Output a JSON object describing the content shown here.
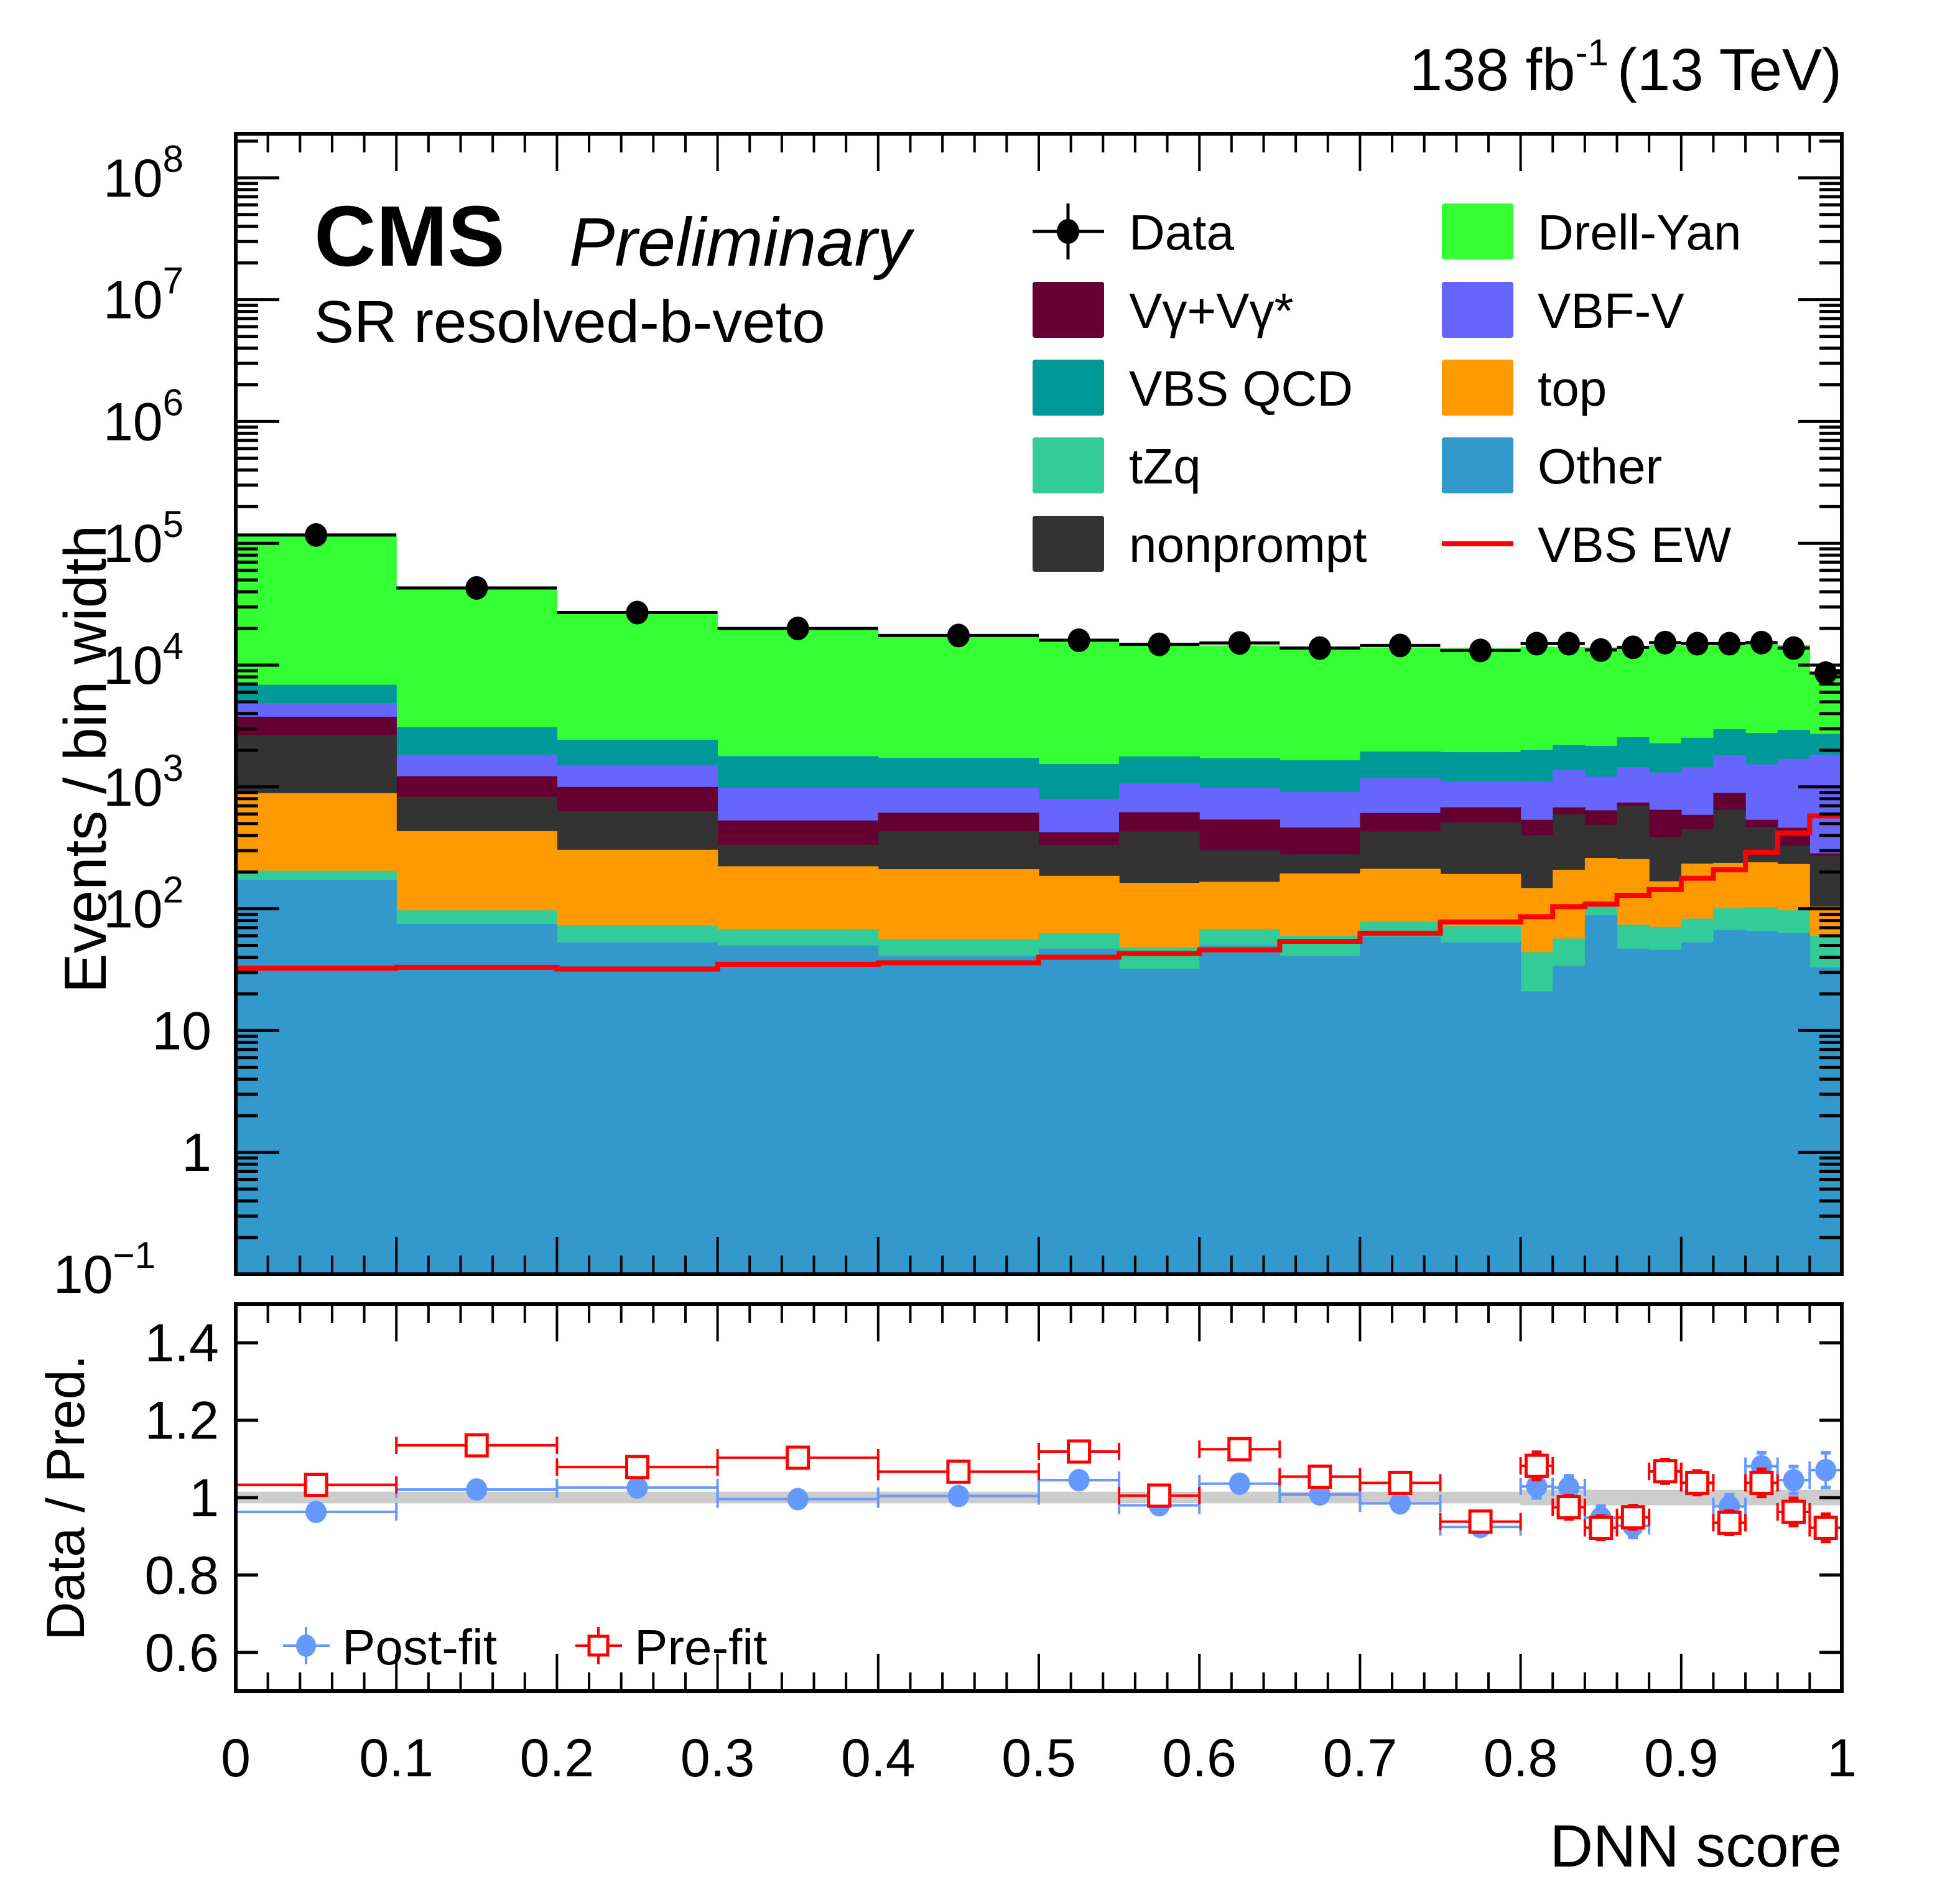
{
  "header": {
    "lumi_value": "138 fb",
    "lumi_exp": "-1",
    "energy": "(13 TeV)",
    "experiment": "CMS",
    "status": "Preliminary",
    "region": "SR resolved-b-veto"
  },
  "chart_data": [
    {
      "type": "bar",
      "stacked": true,
      "log_y": true,
      "title": "",
      "xlabel": "DNN score",
      "ylabel": "Events / bin width",
      "xlim": [
        0,
        1
      ],
      "ylim": [
        0.1,
        230000000
      ],
      "x_ticks": [
        "0",
        "0.1",
        "0.2",
        "0.3",
        "0.4",
        "0.5",
        "0.6",
        "0.7",
        "0.8",
        "0.9",
        "1"
      ],
      "y_ticks": [
        {
          "value": 0.1,
          "base": "10",
          "exp": "−1"
        },
        {
          "value": 1,
          "base": "1",
          "exp": ""
        },
        {
          "value": 10,
          "base": "10",
          "exp": ""
        },
        {
          "value": 100,
          "base": "10",
          "exp": "2"
        },
        {
          "value": 1000,
          "base": "10",
          "exp": "3"
        },
        {
          "value": 10000,
          "base": "10",
          "exp": "4"
        },
        {
          "value": 100000,
          "base": "10",
          "exp": "5"
        },
        {
          "value": 1000000,
          "base": "10",
          "exp": "6"
        },
        {
          "value": 10000000,
          "base": "10",
          "exp": "7"
        },
        {
          "value": 100000000,
          "base": "10",
          "exp": "8"
        }
      ],
      "bin_edges": [
        0,
        0.1,
        0.2,
        0.3,
        0.4,
        0.5,
        0.55,
        0.6,
        0.65,
        0.7,
        0.75,
        0.8,
        0.82,
        0.84,
        0.86,
        0.88,
        0.9,
        0.92,
        0.94,
        0.96,
        0.98,
        1.0
      ],
      "legend_position": "top-right",
      "stack_order_bottom_to_top": [
        "Other",
        "tZq",
        "top",
        "nonprompt",
        "Vγ+Vγ*",
        "VBF-V",
        "VBS QCD",
        "Drell-Yan"
      ],
      "cumulative_stack_tops": {
        "Other": [
          173,
          75,
          53,
          50,
          41,
          47,
          32,
          50,
          41,
          59,
          53,
          21,
          34,
          89,
          47,
          46,
          53,
          67,
          66,
          63,
          33
        ],
        "tZq": [
          205,
          97,
          73,
          68,
          56,
          63,
          48,
          68,
          60,
          78,
          72,
          44,
          57,
          116,
          74,
          71,
          83,
          101,
          103,
          97,
          60
        ],
        "top": [
          890,
          434,
          305,
          223,
          211,
          186,
          163,
          167,
          195,
          213,
          193,
          148,
          209,
          261,
          256,
          168,
          235,
          238,
          241,
          233,
          104
        ],
        "nonprompt": [
          2670,
          830,
          630,
          335,
          432,
          333,
          430,
          302,
          280,
          430,
          512,
          400,
          597,
          489,
          698,
          386,
          448,
          646,
          466,
          330,
          272
        ],
        "Vγ+Vγ*": [
          3770,
          1225,
          1000,
          530,
          615,
          425,
          620,
          540,
          465,
          610,
          681,
          537,
          680,
          643,
          745,
          650,
          590,
          893,
          537,
          462,
          285
        ],
        "VBF-V": [
          4870,
          1835,
          1500,
          985,
          985,
          800,
          1070,
          985,
          910,
          1180,
          1110,
          1110,
          1370,
          1220,
          1456,
          1315,
          1440,
          1820,
          1530,
          1700,
          1840
        ],
        "VBS QCD": [
          6900,
          3100,
          2440,
          1790,
          1730,
          1540,
          1780,
          1720,
          1660,
          1955,
          1930,
          2020,
          2210,
          2170,
          2560,
          2285,
          2530,
          2980,
          2770,
          2940,
          2720
        ],
        "Drell-Yan": [
          115000,
          42000,
          26500,
          19500,
          17000,
          15500,
          14500,
          14500,
          13800,
          14000,
          13800,
          14200,
          14100,
          14000,
          14300,
          14600,
          14500,
          15200,
          14800,
          14600,
          8400
        ]
      },
      "series": [
        {
          "name": "Data",
          "type": "points",
          "color": "#000000",
          "values": [
            117000,
            43000,
            27000,
            20000,
            17500,
            16000,
            14800,
            15200,
            13800,
            14500,
            13200,
            15000,
            15000,
            13300,
            14000,
            15300,
            15000,
            15000,
            15300,
            13800,
            8600
          ]
        },
        {
          "name": "VBS EW",
          "type": "step",
          "color": "#ff0000",
          "values": [
            32.5,
            33,
            32,
            35,
            36,
            40,
            43,
            46,
            54,
            63,
            78,
            86,
            104,
            109,
            129,
            144,
            178,
            209,
            291,
            419,
            578
          ]
        }
      ],
      "legend": [
        {
          "label": "Data",
          "kind": "marker",
          "color": "#000000"
        },
        {
          "label": "Drell-Yan",
          "kind": "fill",
          "color": "#33ff33"
        },
        {
          "label": "Vγ+Vγ*",
          "kind": "fill",
          "color": "#660033"
        },
        {
          "label": "VBF-V",
          "kind": "fill",
          "color": "#6666ff"
        },
        {
          "label": "VBS QCD",
          "kind": "fill",
          "color": "#009999"
        },
        {
          "label": "top",
          "kind": "fill",
          "color": "#ff9900"
        },
        {
          "label": "tZq",
          "kind": "fill",
          "color": "#33cc99"
        },
        {
          "label": "Other",
          "kind": "fill",
          "color": "#3399cc"
        },
        {
          "label": "nonprompt",
          "kind": "fill",
          "color": "#333333"
        },
        {
          "label": "VBS EW",
          "kind": "line",
          "color": "#ff0000"
        }
      ]
    },
    {
      "type": "scatter",
      "title": "",
      "xlabel": "DNN score",
      "ylabel": "Data / Pred.",
      "xlim": [
        0,
        1
      ],
      "ylim": [
        0.5,
        1.5
      ],
      "y_ticks": [
        "0.6",
        "0.8",
        "1",
        "1.2",
        "1.4"
      ],
      "x_ticks": [
        "0",
        "0.1",
        "0.2",
        "0.3",
        "0.4",
        "0.5",
        "0.6",
        "0.7",
        "0.8",
        "0.9",
        "1"
      ],
      "legend_position": "bottom-left",
      "bin_edges": [
        0,
        0.1,
        0.2,
        0.3,
        0.4,
        0.5,
        0.55,
        0.6,
        0.65,
        0.7,
        0.75,
        0.8,
        0.82,
        0.84,
        0.86,
        0.88,
        0.9,
        0.92,
        0.94,
        0.96,
        0.98,
        1.0
      ],
      "uncertainty_band": {
        "color": "#cccccc",
        "half_width": [
          0.015,
          0.015,
          0.015,
          0.015,
          0.015,
          0.015,
          0.015,
          0.015,
          0.015,
          0.015,
          0.015,
          0.02,
          0.02,
          0.02,
          0.02,
          0.02,
          0.02,
          0.02,
          0.02,
          0.02,
          0.02
        ]
      },
      "series": [
        {
          "name": "Post-fit",
          "color": "#6699ff",
          "marker": "filled-circle",
          "values": [
            0.963,
            1.021,
            1.026,
            0.996,
            1.004,
            1.045,
            0.98,
            1.036,
            1.008,
            0.985,
            0.924,
            1.029,
            1.026,
            0.948,
            0.927,
            1.067,
            1.039,
            0.977,
            1.081,
            1.045,
            1.071
          ],
          "errors": [
            0.005,
            0.006,
            0.008,
            0.008,
            0.009,
            0.015,
            0.016,
            0.016,
            0.016,
            0.016,
            0.016,
            0.03,
            0.03,
            0.03,
            0.03,
            0.03,
            0.03,
            0.03,
            0.035,
            0.035,
            0.045
          ]
        },
        {
          "name": "Pre-fit",
          "color": "#ff0000",
          "marker": "open-square",
          "values": [
            1.033,
            1.135,
            1.079,
            1.103,
            1.067,
            1.119,
            1.005,
            1.125,
            1.054,
            1.038,
            0.938,
            1.082,
            0.975,
            0.922,
            0.949,
            1.068,
            1.038,
            0.935,
            1.038,
            0.963,
            0.922
          ],
          "errors": [
            0.008,
            0.01,
            0.01,
            0.01,
            0.012,
            0.018,
            0.016,
            0.018,
            0.018,
            0.018,
            0.018,
            0.035,
            0.03,
            0.03,
            0.03,
            0.03,
            0.03,
            0.03,
            0.035,
            0.035,
            0.035
          ]
        }
      ]
    }
  ]
}
